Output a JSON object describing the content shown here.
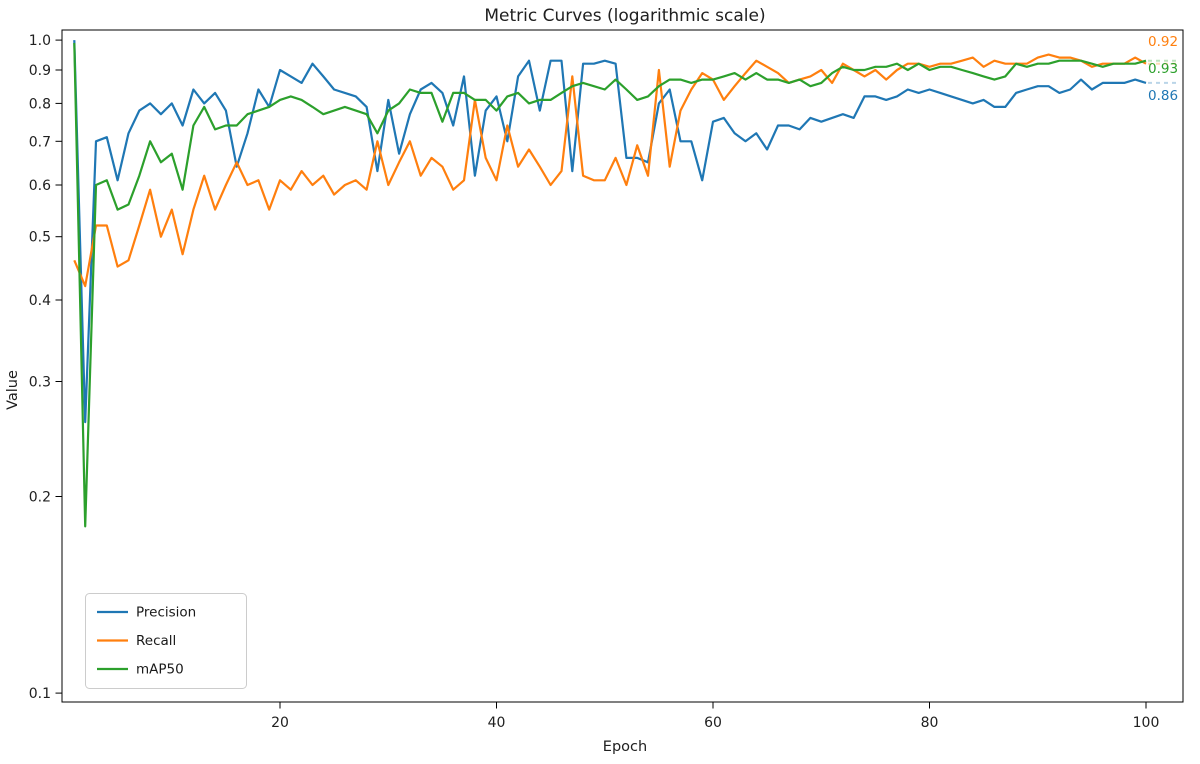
{
  "chart_data": {
    "type": "line",
    "title": "Metric Curves (logarithmic scale)",
    "xlabel": "Epoch",
    "ylabel": "Value",
    "yscale": "log",
    "grid": false,
    "legend_position": "lower left",
    "xlim": [
      -0.2,
      103.4
    ],
    "ylim": [
      0.0965,
      1.037
    ],
    "xticks": [
      20,
      40,
      60,
      80,
      100
    ],
    "yticks": [
      1.0,
      0.9,
      0.8,
      0.7,
      0.6,
      0.5,
      0.4,
      0.3,
      0.2,
      0.1
    ],
    "x_start": 1,
    "x_step": 1,
    "x_end": 100,
    "series": [
      {
        "name": "Precision",
        "color": "#1f77b4",
        "end_label": "0.86",
        "values": [
          1.0,
          0.26,
          0.7,
          0.71,
          0.61,
          0.72,
          0.78,
          0.8,
          0.77,
          0.8,
          0.74,
          0.84,
          0.8,
          0.83,
          0.78,
          0.64,
          0.72,
          0.84,
          0.79,
          0.9,
          0.88,
          0.86,
          0.92,
          0.88,
          0.84,
          0.83,
          0.82,
          0.79,
          0.63,
          0.81,
          0.67,
          0.77,
          0.84,
          0.86,
          0.83,
          0.74,
          0.88,
          0.62,
          0.78,
          0.82,
          0.7,
          0.88,
          0.93,
          0.78,
          0.93,
          0.93,
          0.63,
          0.92,
          0.92,
          0.93,
          0.92,
          0.66,
          0.66,
          0.65,
          0.8,
          0.84,
          0.7,
          0.7,
          0.61,
          0.75,
          0.76,
          0.72,
          0.7,
          0.72,
          0.68,
          0.74,
          0.74,
          0.73,
          0.76,
          0.75,
          0.76,
          0.77,
          0.76,
          0.82,
          0.82,
          0.81,
          0.82,
          0.84,
          0.83,
          0.84,
          0.83,
          0.82,
          0.81,
          0.8,
          0.81,
          0.79,
          0.79,
          0.83,
          0.84,
          0.85,
          0.85,
          0.83,
          0.84,
          0.87,
          0.84,
          0.86,
          0.86,
          0.86,
          0.87,
          0.86
        ]
      },
      {
        "name": "Recall",
        "color": "#ff7f0e",
        "end_label": "0.92",
        "values": [
          0.46,
          0.42,
          0.52,
          0.52,
          0.45,
          0.46,
          0.52,
          0.59,
          0.5,
          0.55,
          0.47,
          0.55,
          0.62,
          0.55,
          0.6,
          0.65,
          0.6,
          0.61,
          0.55,
          0.61,
          0.59,
          0.63,
          0.6,
          0.62,
          0.58,
          0.6,
          0.61,
          0.59,
          0.7,
          0.6,
          0.65,
          0.7,
          0.62,
          0.66,
          0.64,
          0.59,
          0.61,
          0.81,
          0.66,
          0.61,
          0.74,
          0.64,
          0.68,
          0.64,
          0.6,
          0.63,
          0.88,
          0.62,
          0.61,
          0.61,
          0.66,
          0.6,
          0.69,
          0.62,
          0.9,
          0.64,
          0.78,
          0.84,
          0.89,
          0.87,
          0.81,
          0.85,
          0.89,
          0.93,
          0.91,
          0.89,
          0.86,
          0.87,
          0.88,
          0.9,
          0.86,
          0.92,
          0.9,
          0.88,
          0.9,
          0.87,
          0.9,
          0.92,
          0.92,
          0.91,
          0.92,
          0.92,
          0.93,
          0.94,
          0.91,
          0.93,
          0.92,
          0.92,
          0.92,
          0.94,
          0.95,
          0.94,
          0.94,
          0.93,
          0.91,
          0.92,
          0.92,
          0.92,
          0.94,
          0.92
        ]
      },
      {
        "name": "mAP50",
        "color": "#2ca02c",
        "end_label": "0.93",
        "values": [
          0.99,
          0.18,
          0.6,
          0.61,
          0.55,
          0.56,
          0.62,
          0.7,
          0.65,
          0.67,
          0.59,
          0.74,
          0.79,
          0.73,
          0.74,
          0.74,
          0.77,
          0.78,
          0.79,
          0.81,
          0.82,
          0.81,
          0.79,
          0.77,
          0.78,
          0.79,
          0.78,
          0.77,
          0.72,
          0.78,
          0.8,
          0.84,
          0.83,
          0.83,
          0.75,
          0.83,
          0.83,
          0.81,
          0.81,
          0.78,
          0.82,
          0.83,
          0.8,
          0.81,
          0.81,
          0.83,
          0.85,
          0.86,
          0.85,
          0.84,
          0.87,
          0.84,
          0.81,
          0.82,
          0.85,
          0.87,
          0.87,
          0.86,
          0.87,
          0.87,
          0.88,
          0.89,
          0.87,
          0.89,
          0.87,
          0.87,
          0.86,
          0.87,
          0.85,
          0.86,
          0.89,
          0.91,
          0.9,
          0.9,
          0.91,
          0.91,
          0.92,
          0.9,
          0.92,
          0.9,
          0.91,
          0.91,
          0.9,
          0.89,
          0.88,
          0.87,
          0.88,
          0.92,
          0.91,
          0.92,
          0.92,
          0.93,
          0.93,
          0.93,
          0.92,
          0.91,
          0.92,
          0.92,
          0.92,
          0.93
        ]
      }
    ],
    "annotations": [
      {
        "text": "0.92",
        "color": "#ff7f0e"
      },
      {
        "text": "0.93",
        "color": "#2ca02c"
      },
      {
        "text": "0.86",
        "color": "#1f77b4"
      }
    ],
    "legend": {
      "items": [
        "Precision",
        "Recall",
        "mAP50"
      ]
    }
  }
}
